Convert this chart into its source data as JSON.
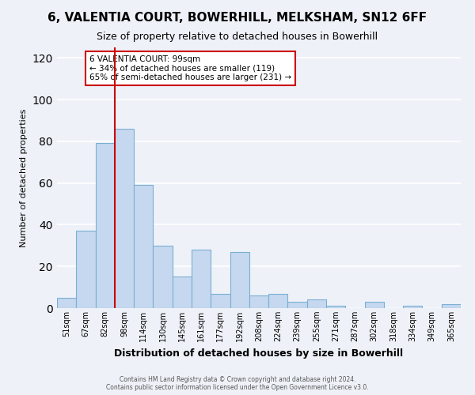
{
  "title": "6, VALENTIA COURT, BOWERHILL, MELKSHAM, SN12 6FF",
  "subtitle": "Size of property relative to detached houses in Bowerhill",
  "xlabel": "Distribution of detached houses by size in Bowerhill",
  "ylabel": "Number of detached properties",
  "categories": [
    "51sqm",
    "67sqm",
    "82sqm",
    "98sqm",
    "114sqm",
    "130sqm",
    "145sqm",
    "161sqm",
    "177sqm",
    "192sqm",
    "208sqm",
    "224sqm",
    "239sqm",
    "255sqm",
    "271sqm",
    "287sqm",
    "302sqm",
    "318sqm",
    "334sqm",
    "349sqm",
    "365sqm"
  ],
  "values": [
    5,
    37,
    79,
    86,
    59,
    30,
    15,
    28,
    7,
    27,
    6,
    7,
    3,
    4,
    1,
    0,
    3,
    0,
    1,
    0,
    2
  ],
  "bar_color": "#c5d8ef",
  "bar_edge_color": "#7aafd4",
  "vline_x": 2.5,
  "vline_color": "#cc0000",
  "annotation_title": "6 VALENTIA COURT: 99sqm",
  "annotation_line1": "← 34% of detached houses are smaller (119)",
  "annotation_line2": "65% of semi-detached houses are larger (231) →",
  "annotation_box_color": "#cc0000",
  "ylim": [
    0,
    125
  ],
  "yticks": [
    0,
    20,
    40,
    60,
    80,
    100,
    120
  ],
  "footer1": "Contains HM Land Registry data © Crown copyright and database right 2024.",
  "footer2": "Contains public sector information licensed under the Open Government Licence v3.0.",
  "bg_color": "#eef2f8",
  "plot_bg_color": "#eef2f8",
  "grid_color": "#ffffff",
  "title_fontsize": 11,
  "subtitle_fontsize": 9,
  "xlabel_fontsize": 9,
  "ylabel_fontsize": 8,
  "annotation_fontsize": 7.5,
  "tick_fontsize": 7,
  "footer_fontsize": 5.5
}
